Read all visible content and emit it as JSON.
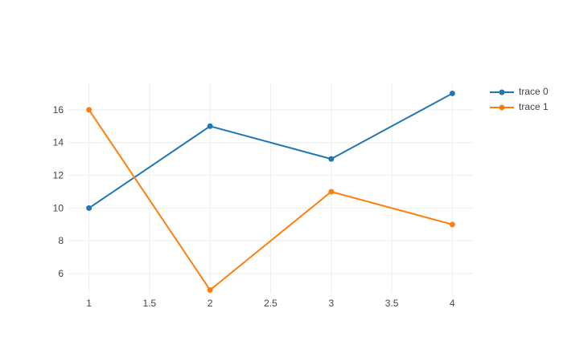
{
  "figure": {
    "background": "#ffffff",
    "title": ""
  },
  "chart_data": {
    "type": "line",
    "title": "",
    "xlabel": "",
    "ylabel": "",
    "series": [
      {
        "name": "trace 0",
        "color": "#1f77b4",
        "mode": "lines+markers",
        "x": [
          1,
          2,
          3,
          4
        ],
        "y": [
          10,
          15,
          13,
          17
        ]
      },
      {
        "name": "trace 1",
        "color": "#ff7f0e",
        "mode": "lines+markers",
        "x": [
          1,
          2,
          3,
          4
        ],
        "y": [
          16,
          5,
          11,
          9
        ]
      }
    ],
    "xticks": [
      1,
      1.5,
      2,
      2.5,
      3,
      3.5,
      4
    ],
    "yticks": [
      6,
      8,
      10,
      12,
      14,
      16
    ],
    "xlim": [
      0.83,
      4.17
    ],
    "ylim": [
      4.78,
      17.61
    ],
    "grid": true,
    "grid_color": "#eeeeee",
    "tick_label_color": "#444444",
    "tick_font_size": 12,
    "line_width": 2,
    "marker_radius": 3.5,
    "legend_position": "outside-top-right"
  }
}
